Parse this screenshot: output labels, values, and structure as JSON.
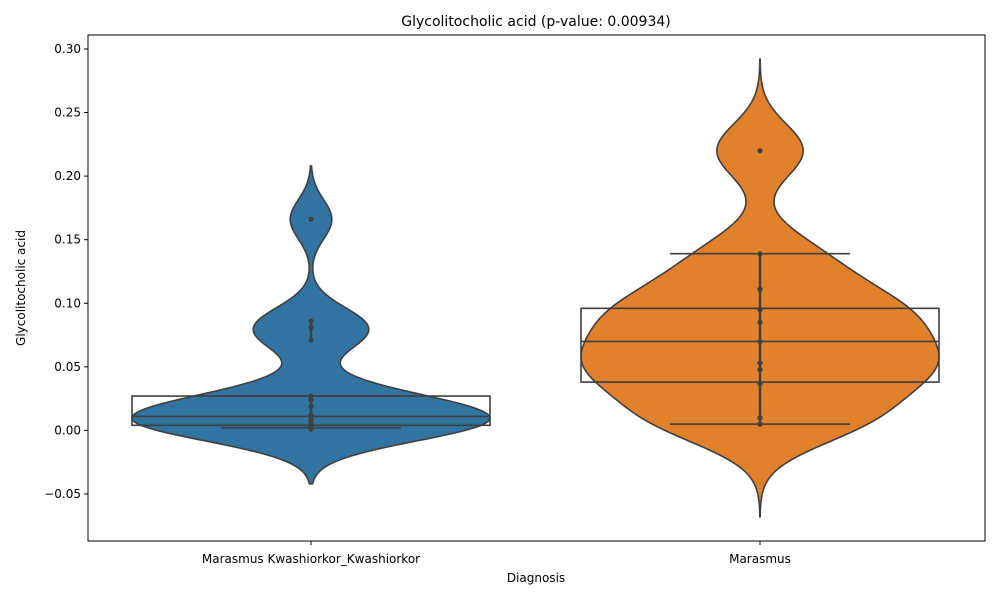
{
  "chart_data": {
    "type": "violin",
    "title": "Glycolitocholic acid (p-value: 0.00934)",
    "xlabel": "Diagnosis",
    "ylabel": "Glycolitocholic acid",
    "ylim": [
      -0.087,
      0.311
    ],
    "yticks": [
      -0.05,
      0.0,
      0.05,
      0.1,
      0.15,
      0.2,
      0.25,
      0.3
    ],
    "ytick_labels": [
      "−0.05",
      "0.00",
      "0.05",
      "0.10",
      "0.15",
      "0.20",
      "0.25",
      "0.30"
    ],
    "categories": [
      "Marasmus Kwashiorkor_Kwashiorkor",
      "Marasmus"
    ],
    "series": [
      {
        "category": "Marasmus Kwashiorkor_Kwashiorkor",
        "color": "#3274a1",
        "points": [
          0.166,
          0.086,
          0.081,
          0.071,
          0.027,
          0.024,
          0.019,
          0.012,
          0.009,
          0.007,
          0.005,
          0.003,
          0.002,
          0.001
        ],
        "box": {
          "q1": 0.004,
          "median": 0.011,
          "q3": 0.027
        },
        "whisker_lines": [
          0.027,
          0.002
        ],
        "kde_range": [
          -0.042,
          0.208
        ]
      },
      {
        "category": "Marasmus",
        "color": "#e1812c",
        "points": [
          0.22,
          0.139,
          0.111,
          0.095,
          0.085,
          0.07,
          0.053,
          0.048,
          0.037,
          0.01,
          0.005
        ],
        "box": {
          "q1": 0.038,
          "median": 0.07,
          "q3": 0.096
        },
        "whisker_lines": [
          0.139,
          0.005
        ],
        "kde_range": [
          -0.068,
          0.292
        ]
      }
    ],
    "grid": false,
    "legend": "none"
  }
}
